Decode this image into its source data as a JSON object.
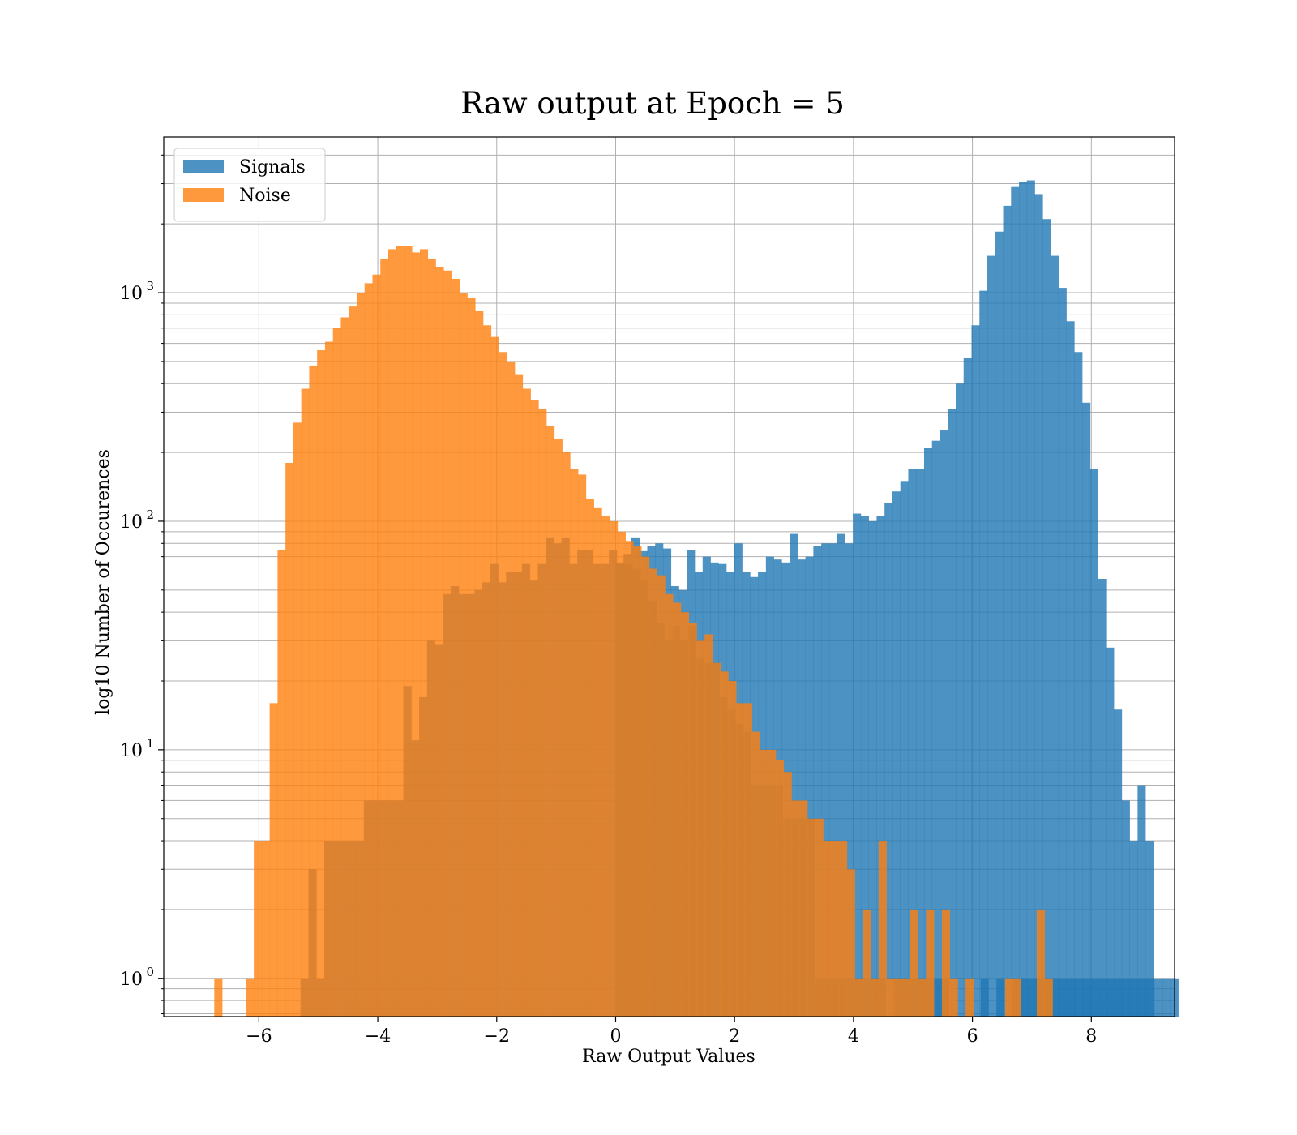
{
  "chart_data": {
    "type": "bar",
    "title": "Raw output at Epoch = 5",
    "xlabel": "Raw Output Values",
    "ylabel": "log10 Number of Occurences",
    "xlim": [
      -7.6,
      9.4
    ],
    "ylim": [
      0.68,
      4800
    ],
    "yscale": "log",
    "grid": true,
    "grid_minor_y": true,
    "legend_position": "top-left",
    "bar_opacity": 0.8,
    "xticks": [
      -6,
      -4,
      -2,
      0,
      2,
      4,
      6,
      8
    ],
    "xtick_labels": [
      "−6",
      "−4",
      "−2",
      "0",
      "2",
      "4",
      "6",
      "8"
    ],
    "yticks": [
      {
        "value": 1,
        "base": "10",
        "exp": "0"
      },
      {
        "value": 10,
        "base": "10",
        "exp": "1"
      },
      {
        "value": 100,
        "base": "10",
        "exp": "2"
      },
      {
        "value": 1000,
        "base": "10",
        "exp": "3"
      }
    ],
    "series": [
      {
        "name": "Signals",
        "color": "#1f77b4",
        "bin_start": -5.3,
        "bin_width": 0.133,
        "values": [
          1,
          3,
          1,
          4,
          4,
          4,
          4,
          4,
          6,
          6,
          6,
          6,
          6,
          19,
          11,
          17,
          30,
          29,
          48,
          52,
          48,
          48,
          50,
          54,
          65,
          54,
          60,
          60,
          65,
          55,
          65,
          85,
          80,
          85,
          65,
          75,
          75,
          65,
          65,
          75,
          65,
          65,
          62,
          55,
          45,
          36,
          30,
          35,
          30,
          35,
          25,
          24,
          24,
          17,
          15,
          13,
          12,
          7,
          7,
          7,
          7,
          5,
          5,
          5,
          5,
          1,
          1,
          1,
          1,
          1,
          1,
          1,
          1,
          1,
          0,
          1,
          1,
          1,
          1,
          1,
          1,
          1,
          0,
          0,
          0,
          0,
          1,
          0,
          1,
          0,
          1,
          1,
          1,
          1,
          1,
          1,
          1,
          1,
          1,
          1,
          1,
          1,
          1,
          1,
          1,
          1,
          1,
          1,
          1,
          1,
          1
        ]
      },
      {
        "name": "Signals",
        "color": "#1f77b4",
        "bin_start": 0.0,
        "bin_width": 0.133,
        "values": [
          66,
          72,
          85,
          74,
          78,
          80,
          76,
          52,
          50,
          75,
          60,
          70,
          66,
          65,
          60,
          80,
          60,
          57,
          60,
          70,
          68,
          66,
          88,
          68,
          70,
          78,
          80,
          80,
          88,
          80,
          108,
          105,
          100,
          105,
          120,
          135,
          150,
          170,
          170,
          210,
          225,
          250,
          310,
          400,
          520,
          720,
          1020,
          1450,
          1850,
          2400,
          2900,
          3050,
          3100,
          2700,
          2100,
          1450,
          1050,
          750,
          550,
          330,
          170,
          56,
          28,
          15,
          6,
          4,
          7,
          4
        ]
      },
      {
        "name": "Noise",
        "color": "#ff7f0e",
        "bin_start": -6.75,
        "bin_width": 0.133,
        "values": [
          1,
          0,
          0,
          0,
          1,
          4,
          4,
          16,
          75,
          180,
          270,
          380,
          480,
          560,
          610,
          700,
          780,
          870,
          1000,
          1100,
          1200,
          1400,
          1550,
          1600,
          1600,
          1500,
          1550,
          1400,
          1300,
          1250,
          1150,
          1000,
          950,
          830,
          720,
          640,
          550,
          500,
          440,
          380,
          340,
          310,
          260,
          230,
          200,
          170,
          160,
          125,
          115,
          105,
          100,
          90,
          82,
          78,
          70,
          62,
          58,
          48,
          44,
          40,
          36,
          30,
          32,
          24,
          22,
          20,
          16,
          16,
          12,
          10,
          10,
          9,
          8,
          6,
          6,
          5,
          5,
          4,
          4,
          4,
          3,
          1,
          2,
          1,
          4,
          1,
          1,
          1,
          2,
          1,
          2,
          0,
          2,
          1,
          0,
          1,
          0,
          0,
          0,
          0,
          1,
          1,
          0,
          0,
          2,
          1,
          0
        ]
      }
    ]
  }
}
